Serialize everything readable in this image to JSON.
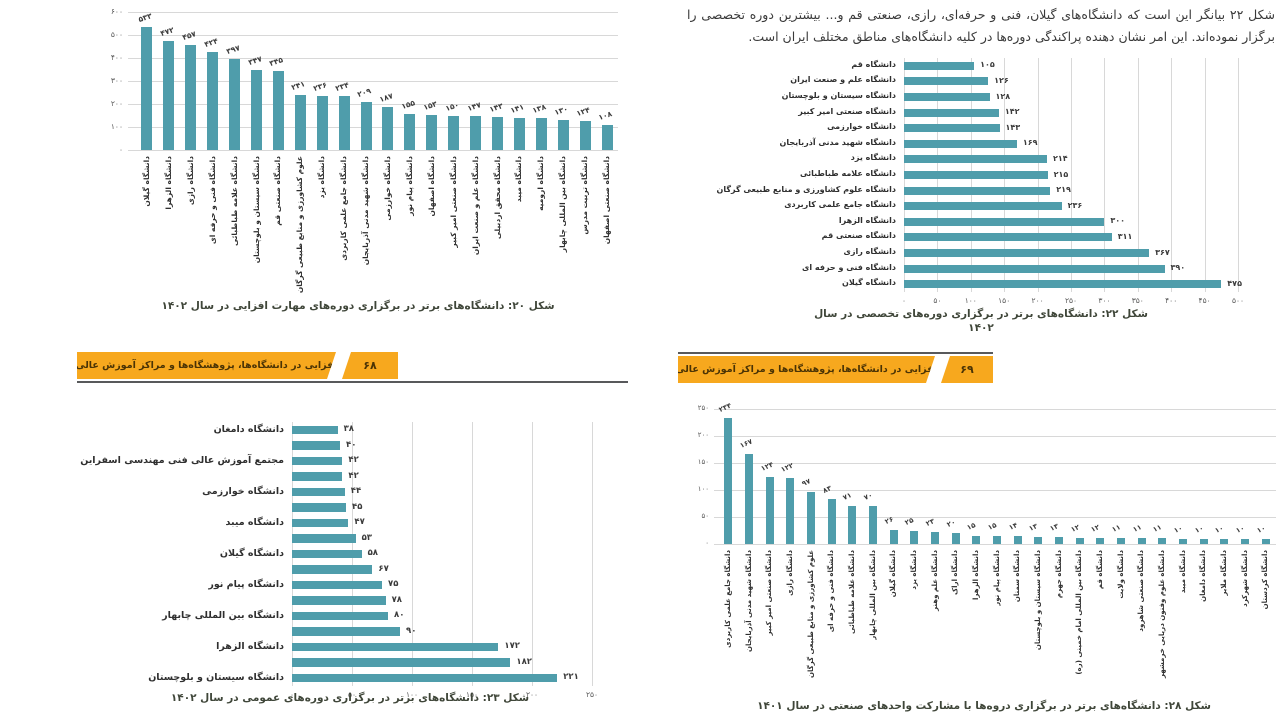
{
  "page": {
    "intro_text": "شکل ۲۲ بیانگر این است که دانشگاه‌های گیلان، فنی و حرفه‌ای، رازی، صنعتی قم و... بیشترین دوره تخصصی را برگزار نموده‌اند. این امر نشان دهنده پراکندگی دوره‌ها در کلیه دانشگاه‌های مناطق مختلف ایران است.",
    "banners": {
      "left": {
        "text": "مهارت‌افزایی در دانشگاه‌ها، پژوهشگاه‌ها و مراکز آموزش عالی کشور",
        "page_number": "۶۸"
      },
      "right": {
        "text": "مهارت‌افزایی در دانشگاه‌ها، پژوهشگاه‌ها و مراکز آموزش عالی کشور",
        "page_number": "۶۹"
      }
    },
    "colors": {
      "bar": "#4f9dab",
      "banner": "#f7a81e",
      "grid": "#d8d8d8",
      "caption": "#3f4639"
    },
    "digit_style": "persian-eastern-arabic"
  },
  "chart_data": [
    {
      "id": "figure-20",
      "type": "bar",
      "orientation": "vertical",
      "title": "شکل ۲۰: دانشگاه‌های برتر در برگزاری دوره‌های مهارت افزایی در سال ۱۴۰۲",
      "categories": [
        "دانشگاه گیلان",
        "دانشگاه الزهرا",
        "دانشگاه رازی",
        "دانشگاه فنی و حرفه ای",
        "دانشگاه علامه طباطبائی",
        "دانشگاه سیستان و بلوچستان",
        "دانشگاه صنعتی قم",
        "علوم کشاورزی و منابع طبیعی گرگان",
        "دانشگاه یزد",
        "دانشگاه جامع علمی کاربردی",
        "دانشگاه شهید مدنی آذربایجان",
        "دانشگاه خوارزمی",
        "دانشگاه پیام نور",
        "دانشگاه اصفهان",
        "دانشگاه صنعتی امیر کبیر",
        "دانشگاه علم و صنعت ایران",
        "دانشگاه محقق اردبیلی",
        "دانشگاه میبد",
        "دانشگاه ارومیه",
        "دانشگاه بین المللی چابهار",
        "دانشگاه تربیت مدرس",
        "دانشگاه صنعتی اصفهان"
      ],
      "values": [
        533,
        472,
        457,
        424,
        397,
        347,
        345,
        241,
        236,
        234,
        209,
        187,
        155,
        153,
        150,
        147,
        143,
        141,
        138,
        130,
        124,
        108
      ],
      "ylim": [
        0,
        600
      ],
      "ytick_step": 100,
      "grid": true
    },
    {
      "id": "figure-22",
      "type": "bar",
      "orientation": "horizontal",
      "title": "شکل ۲۲: دانشگاه‌های برتر در برگزاری دوره‌های تخصصی در سال",
      "title_line2": "۱۴۰۲",
      "categories": [
        "دانشگاه قم",
        "دانشگاه علم و صنعت ایران",
        "دانشگاه سیستان و بلوچستان",
        "دانشگاه صنعتی امیر کبیر",
        "دانشگاه خوارزمی",
        "دانشگاه شهید مدنی آذربایجان",
        "دانشگاه یزد",
        "دانشگاه علامه طباطبائی",
        "دانشگاه علوم کشاورزی و منابع طبیعی گرگان",
        "دانشگاه جامع علمی کاربردی",
        "دانشگاه الزهرا",
        "دانشگاه صنعتی قم",
        "دانشگاه رازی",
        "دانشگاه فنی و حرفه ای",
        "دانشگاه گیلان"
      ],
      "values": [
        105,
        126,
        128,
        142,
        143,
        169,
        214,
        215,
        219,
        236,
        300,
        311,
        367,
        390,
        475
      ],
      "xlim": [
        0,
        500
      ],
      "xtick_step": 50,
      "grid": true
    },
    {
      "id": "figure-23",
      "type": "bar",
      "orientation": "horizontal",
      "title": "شکل ۲۳: دانشگاه‌های برتر در برگزاری دوره‌های عمومی در سال ۱۴۰۲",
      "categories": [
        "دانشگاه دامغان",
        "",
        "مجتمع آموزش عالی فنی مهندسی اسفراین",
        "",
        "دانشگاه خوارزمی",
        "",
        "دانشگاه میبد",
        "",
        "دانشگاه گیلان",
        "",
        "دانشگاه پیام نور",
        "",
        "دانشگاه بین المللی چابهار",
        "",
        "دانشگاه الزهرا",
        "",
        "دانشگاه سیستان و بلوچستان"
      ],
      "values": [
        38,
        40,
        42,
        42,
        44,
        45,
        47,
        53,
        58,
        67,
        75,
        78,
        80,
        90,
        172,
        182,
        221
      ],
      "xlim": [
        0,
        250
      ],
      "xtick_step": 50,
      "grid": true
    },
    {
      "id": "figure-28",
      "type": "bar",
      "orientation": "vertical",
      "title": "شکل ۲۸: دانشگاه‌های برتر در برگزاری دروه‌ها با مشارکت واحدهای صنعتی در سال ۱۴۰۱",
      "categories": [
        "دانشگاه جامع علمی کاربردی",
        "دانشگاه شهید مدنی آذربایجان",
        "دانشگاه صنعتی امیر کبیر",
        "دانشگاه رازی",
        "علوم کشاورزی و منابع طبیعی گرگان",
        "دانشگاه فنی و حرفه ای",
        "دانشگاه علامه طباطبائی",
        "دانشگاه بین المللی چابهار",
        "دانشگاه گیلان",
        "دانشگاه یزد",
        "دانشگاه علم وهنر",
        "دانشگاه اراک",
        "دانشگاه الزهرا",
        "دانشگاه پیام نور",
        "دانشگاه سمنان",
        "دانشگاه سیستان و بلوچستان",
        "دانشگاه جهرم",
        "دانشگاه بین المللی امام خمینی (ره)",
        "دانشگاه قم",
        "دانشگاه ولایت",
        "دانشگاه صنعتی شاهرود",
        "دانشگاه علوم وفنون دریایی خرمشهر",
        "دانشگاه میبد",
        "دانشگاه دامغان",
        "دانشگاه ملایر",
        "دانشگاه شهرکرد",
        "دانشگاه کردستان"
      ],
      "values": [
        234,
        167,
        124,
        122,
        97,
        83,
        71,
        70,
        26,
        25,
        23,
        20,
        15,
        15,
        14,
        13,
        13,
        12,
        12,
        11,
        11,
        11,
        10,
        10,
        10,
        10,
        10
      ],
      "ylim": [
        0,
        250
      ],
      "ytick_step": 50,
      "grid": true
    }
  ]
}
